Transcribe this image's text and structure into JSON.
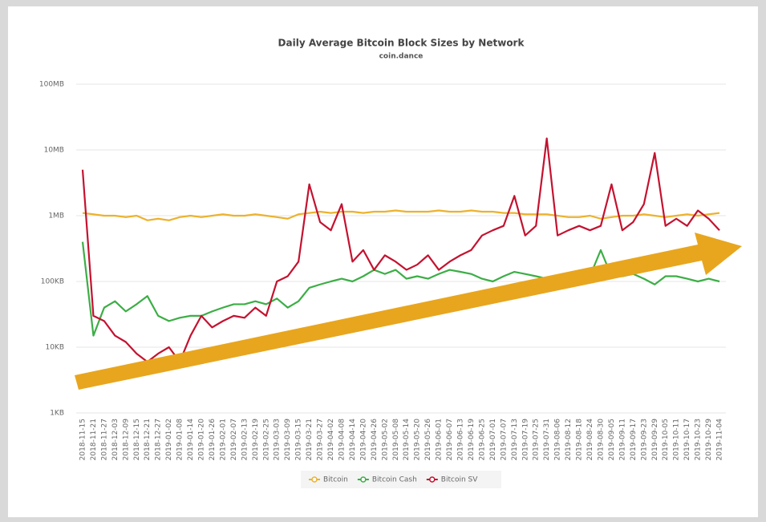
{
  "chart_data": {
    "type": "line",
    "title": "Daily Average Bitcoin Block Sizes by Network",
    "subtitle": "coin.dance",
    "log": true,
    "grid": true,
    "ylim": [
      1,
      100000
    ],
    "yticks": [
      {
        "value": 1,
        "label": "1KB"
      },
      {
        "value": 10,
        "label": "10KB"
      },
      {
        "value": 100,
        "label": "100KB"
      },
      {
        "value": 1000,
        "label": "1MB"
      },
      {
        "value": 10000,
        "label": "10MB"
      },
      {
        "value": 100000,
        "label": "100MB"
      }
    ],
    "legend": "bottom",
    "categories": [
      "2018-11-15",
      "2018-11-21",
      "2018-11-27",
      "2018-12-03",
      "2018-12-09",
      "2018-12-15",
      "2018-12-21",
      "2018-12-27",
      "2019-01-02",
      "2019-01-08",
      "2019-01-14",
      "2019-01-20",
      "2019-01-26",
      "2019-02-01",
      "2019-02-07",
      "2019-02-13",
      "2019-02-19",
      "2019-02-25",
      "2019-03-03",
      "2019-03-09",
      "2019-03-15",
      "2019-03-21",
      "2019-03-27",
      "2019-04-02",
      "2019-04-08",
      "2019-04-14",
      "2019-04-20",
      "2019-04-26",
      "2019-05-02",
      "2019-05-08",
      "2019-05-14",
      "2019-05-20",
      "2019-05-26",
      "2019-06-01",
      "2019-06-07",
      "2019-06-13",
      "2019-06-19",
      "2019-06-25",
      "2019-07-01",
      "2019-07-07",
      "2019-07-13",
      "2019-07-19",
      "2019-07-25",
      "2019-07-31",
      "2019-08-06",
      "2019-08-12",
      "2019-08-18",
      "2019-08-24",
      "2019-08-30",
      "2019-09-05",
      "2019-09-11",
      "2019-09-17",
      "2019-09-23",
      "2019-09-29",
      "2019-10-05",
      "2019-10-11",
      "2019-10-17",
      "2019-10-23",
      "2019-10-29",
      "2019-11-04"
    ],
    "series": [
      {
        "name": "Bitcoin",
        "color": "#ecb22e",
        "values": [
          1100,
          1050,
          1000,
          1000,
          950,
          1000,
          850,
          900,
          850,
          950,
          1000,
          950,
          1000,
          1050,
          1000,
          1000,
          1050,
          1000,
          950,
          900,
          1050,
          1100,
          1150,
          1100,
          1150,
          1150,
          1100,
          1150,
          1150,
          1200,
          1150,
          1150,
          1150,
          1200,
          1150,
          1150,
          1200,
          1150,
          1150,
          1100,
          1100,
          1050,
          1050,
          1050,
          1000,
          950,
          950,
          1000,
          900,
          950,
          1000,
          1000,
          1050,
          1000,
          950,
          1000,
          1050,
          1000,
          1050,
          1100
        ]
      },
      {
        "name": "Bitcoin Cash",
        "color": "#3cae46",
        "values": [
          400,
          15,
          40,
          50,
          35,
          45,
          60,
          30,
          25,
          28,
          30,
          30,
          35,
          40,
          45,
          45,
          50,
          45,
          55,
          40,
          50,
          80,
          90,
          100,
          110,
          100,
          120,
          150,
          130,
          150,
          110,
          120,
          110,
          130,
          150,
          140,
          130,
          110,
          100,
          120,
          140,
          130,
          120,
          110,
          110,
          100,
          110,
          120,
          300,
          120,
          120,
          130,
          110,
          90,
          120,
          120,
          110,
          100,
          110,
          100
        ]
      },
      {
        "name": "Bitcoin SV",
        "color": "#c4122f",
        "values": [
          5000,
          30,
          25,
          15,
          12,
          8,
          6,
          8,
          10,
          6,
          15,
          30,
          20,
          25,
          30,
          28,
          40,
          30,
          100,
          120,
          200,
          3000,
          800,
          600,
          1500,
          200,
          300,
          150,
          250,
          200,
          150,
          180,
          250,
          150,
          200,
          250,
          300,
          500,
          600,
          700,
          2000,
          500,
          700,
          15000,
          500,
          600,
          700,
          600,
          700,
          3000,
          600,
          800,
          1500,
          9000,
          700,
          900,
          700,
          1200,
          900,
          600
        ]
      }
    ]
  }
}
